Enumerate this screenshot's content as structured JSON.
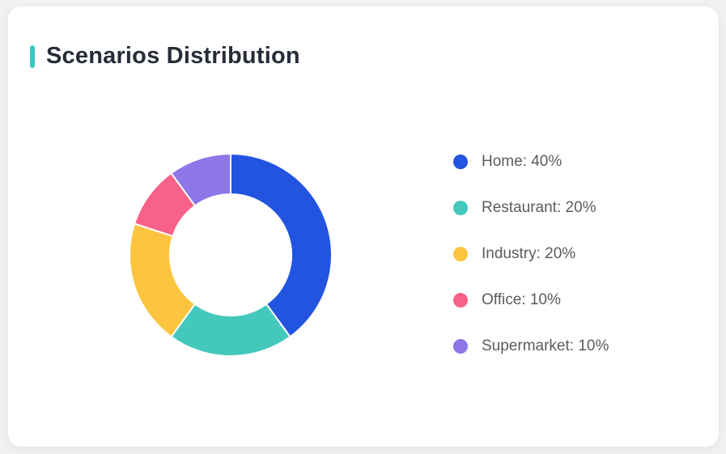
{
  "card": {
    "title": "Scenarios Distribution"
  },
  "theme": {
    "page_bg": "#f0f1f2",
    "card_bg": "#ffffff",
    "accent_color": "#3bc8be",
    "title_color": "#262d38",
    "legend_text_color": "#5c5c5c",
    "slice_gap_color": "#ffffff"
  },
  "chart_data": {
    "type": "pie",
    "subtype": "donut",
    "title": "Scenarios Distribution",
    "categories": [
      "Home",
      "Restaurant",
      "Industry",
      "Office",
      "Supermarket"
    ],
    "values": [
      40,
      20,
      20,
      10,
      10
    ],
    "unit": "%",
    "colors": [
      "#2254e0",
      "#45c8bc",
      "#fdc53f",
      "#f7618a",
      "#8e75e8"
    ],
    "start_angle_deg": 0,
    "direction": "clockwise",
    "donut_hole_ratio": 0.6,
    "legend_position": "right",
    "legend": [
      {
        "label": "Home: 40%",
        "color": "#2254e0"
      },
      {
        "label": "Restaurant: 20%",
        "color": "#45c8bc"
      },
      {
        "label": "Industry: 20%",
        "color": "#fdc53f"
      },
      {
        "label": "Office: 10%",
        "color": "#f7618a"
      },
      {
        "label": "Supermarket: 10%",
        "color": "#8e75e8"
      }
    ]
  }
}
